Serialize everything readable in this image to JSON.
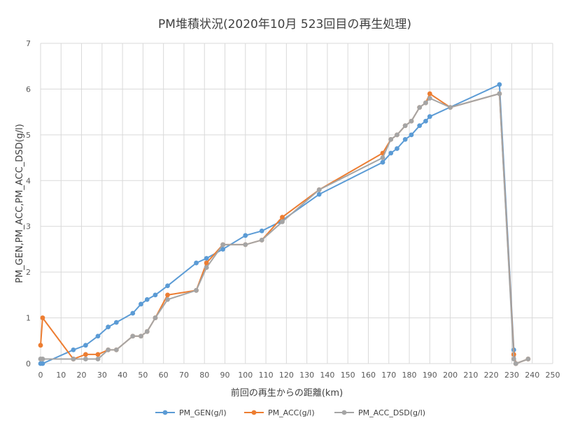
{
  "chart_data": {
    "type": "line",
    "title": "PM堆積状況(2020年10月 523回目の再生処理)",
    "xlabel": "前回の再生からの距離(km)",
    "ylabel": "PM_GEN,PM_ACC,PM_ACC_DSD(g/l)",
    "xlim": [
      0,
      250
    ],
    "ylim": [
      0,
      7
    ],
    "x_ticks": [
      "0",
      "10",
      "20",
      "30",
      "40",
      "50",
      "60",
      "70",
      "80",
      "90",
      "100",
      "110",
      "120",
      "130",
      "140",
      "150",
      "160",
      "170",
      "180",
      "190",
      "200",
      "210",
      "220",
      "230",
      "240",
      "250"
    ],
    "y_ticks": [
      "0",
      "1",
      "2",
      "3",
      "4",
      "5",
      "6",
      "7"
    ],
    "grid": true,
    "legend_position": "bottom",
    "series": [
      {
        "name": "PM_GEN(g/l)",
        "color": "#5B9BD5",
        "points": [
          [
            0,
            0
          ],
          [
            1,
            0
          ],
          [
            16,
            0.3
          ],
          [
            22,
            0.4
          ],
          [
            28,
            0.6
          ],
          [
            33,
            0.8
          ],
          [
            37,
            0.9
          ],
          [
            45,
            1.1
          ],
          [
            49,
            1.3
          ],
          [
            52,
            1.4
          ],
          [
            56,
            1.5
          ],
          [
            62,
            1.7
          ],
          [
            76,
            2.2
          ],
          [
            81,
            2.3
          ],
          [
            89,
            2.5
          ],
          [
            100,
            2.8
          ],
          [
            108,
            2.9
          ],
          [
            117,
            3.1
          ],
          [
            136,
            3.7
          ],
          [
            167,
            4.4
          ],
          [
            171,
            4.6
          ],
          [
            174,
            4.7
          ],
          [
            178,
            4.9
          ],
          [
            181,
            5.0
          ],
          [
            185,
            5.2
          ],
          [
            188,
            5.3
          ],
          [
            190,
            5.4
          ],
          [
            224,
            6.1
          ],
          [
            231,
            0.3
          ],
          [
            232,
            0
          ]
        ]
      },
      {
        "name": "PM_ACC(g/l)",
        "color": "#ED7D31",
        "points": [
          [
            0,
            0.4
          ],
          [
            1,
            1.0
          ],
          [
            16,
            0.1
          ],
          [
            22,
            0.2
          ],
          [
            28,
            0.2
          ],
          [
            33,
            0.3
          ],
          [
            37,
            0.3
          ],
          [
            45,
            0.6
          ],
          [
            49,
            0.6
          ],
          [
            52,
            0.7
          ],
          [
            56,
            1.0
          ],
          [
            62,
            1.5
          ],
          [
            76,
            1.6
          ],
          [
            81,
            2.2
          ],
          [
            89,
            2.6
          ],
          [
            100,
            2.6
          ],
          [
            108,
            2.7
          ],
          [
            118,
            3.2
          ],
          [
            136,
            3.8
          ],
          [
            167,
            4.6
          ],
          [
            171,
            4.9
          ],
          [
            174,
            5.0
          ],
          [
            178,
            5.2
          ],
          [
            181,
            5.3
          ],
          [
            185,
            5.6
          ],
          [
            188,
            5.7
          ],
          [
            190,
            5.9
          ],
          [
            200,
            5.6
          ],
          [
            224,
            5.9
          ],
          [
            231,
            0.2
          ],
          [
            232,
            0
          ],
          [
            238,
            0.1
          ]
        ]
      },
      {
        "name": "PM_ACC_DSD(g/l)",
        "color": "#A5A5A5",
        "points": [
          [
            0,
            0.1
          ],
          [
            1,
            0.1
          ],
          [
            16,
            0.1
          ],
          [
            22,
            0.1
          ],
          [
            28,
            0.1
          ],
          [
            33,
            0.3
          ],
          [
            37,
            0.3
          ],
          [
            45,
            0.6
          ],
          [
            49,
            0.6
          ],
          [
            52,
            0.7
          ],
          [
            56,
            1.0
          ],
          [
            62,
            1.4
          ],
          [
            76,
            1.6
          ],
          [
            81,
            2.1
          ],
          [
            89,
            2.6
          ],
          [
            100,
            2.6
          ],
          [
            108,
            2.7
          ],
          [
            118,
            3.1
          ],
          [
            136,
            3.8
          ],
          [
            167,
            4.5
          ],
          [
            171,
            4.9
          ],
          [
            174,
            5.0
          ],
          [
            178,
            5.2
          ],
          [
            181,
            5.3
          ],
          [
            185,
            5.6
          ],
          [
            188,
            5.7
          ],
          [
            190,
            5.8
          ],
          [
            200,
            5.6
          ],
          [
            224,
            5.9
          ],
          [
            231,
            0.1
          ],
          [
            232,
            0
          ],
          [
            238,
            0.1
          ]
        ]
      }
    ]
  }
}
